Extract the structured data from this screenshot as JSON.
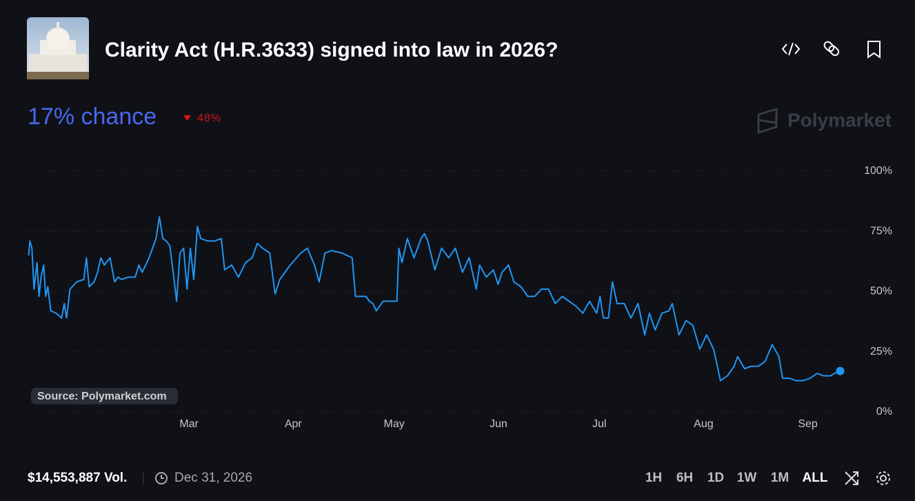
{
  "header": {
    "title": "Clarity Act (H.R.3633) signed into law in 2026?",
    "chance": "17% chance",
    "change": "48%",
    "brand": "Polymarket"
  },
  "source": "Source: Polymarket.com",
  "footer": {
    "volume": "$14,553,887 Vol.",
    "end_date": "Dec 31, 2026",
    "ranges": [
      "1H",
      "6H",
      "1D",
      "1W",
      "1M",
      "ALL"
    ]
  },
  "chart_data": {
    "type": "line",
    "color": "#2196f3",
    "grid": true,
    "xlim": [
      12,
      257
    ],
    "ylim": [
      0,
      100
    ],
    "xticks": [
      {
        "value": 60,
        "label": "Mar"
      },
      {
        "value": 91,
        "label": "Apr"
      },
      {
        "value": 121,
        "label": "May"
      },
      {
        "value": 152,
        "label": "Jun"
      },
      {
        "value": 182,
        "label": "Jul"
      },
      {
        "value": 213,
        "label": "Aug"
      },
      {
        "value": 244,
        "label": "Sep"
      }
    ],
    "yticks": [
      {
        "value": 0,
        "label": "0%"
      },
      {
        "value": 25,
        "label": "25%"
      },
      {
        "value": 50,
        "label": "50%"
      },
      {
        "value": 75,
        "label": "75%"
      },
      {
        "value": 100,
        "label": "100%"
      }
    ],
    "x": [
      12.3,
      12.7,
      13.3,
      13.9,
      14.8,
      15.4,
      16.0,
      16.8,
      17.4,
      18.0,
      18.9,
      20.5,
      22.1,
      22.9,
      23.6,
      24.6,
      26.6,
      28.7,
      29.5,
      30.3,
      31.8,
      32.8,
      33.8,
      34.8,
      36.5,
      37.9,
      38.9,
      39.9,
      42.0,
      44.0,
      45.1,
      46.1,
      48.1,
      50.2,
      51.2,
      52.2,
      53.2,
      54.3,
      55.3,
      56.3,
      57.3,
      58.4,
      59.4,
      60.4,
      61.4,
      62.5,
      63.5,
      65.5,
      67.6,
      69.6,
      70.6,
      72.7,
      74.7,
      76.8,
      78.8,
      80.3,
      81.9,
      84.0,
      85.6,
      87.0,
      90.1,
      93.2,
      95.2,
      97.3,
      98.7,
      100.4,
      102.4,
      105.5,
      108.5,
      109.5,
      112.6,
      113.6,
      114.7,
      115.7,
      117.7,
      121.8,
      122.4,
      123.3,
      124.9,
      126.9,
      129.0,
      130.0,
      131.0,
      133.1,
      135.1,
      137.2,
      139.2,
      141.3,
      143.3,
      145.4,
      146.4,
      148.4,
      150.5,
      151.9,
      153.1,
      155.0,
      156.6,
      158.7,
      160.7,
      162.8,
      164.8,
      166.9,
      168.9,
      171.0,
      173.0,
      175.0,
      177.1,
      179.1,
      181.2,
      182.2,
      183.2,
      184.7,
      185.9,
      187.3,
      189.4,
      191.4,
      193.5,
      195.5,
      196.9,
      198.6,
      200.6,
      202.7,
      203.7,
      205.7,
      207.8,
      209.8,
      211.9,
      213.9,
      216.0,
      218.0,
      220.1,
      222.1,
      223.1,
      225.2,
      227.2,
      229.3,
      231.3,
      233.4,
      235.4,
      236.5,
      238.5,
      240.5,
      242.6,
      244.7,
      246.7,
      248.7,
      250.8,
      251.8,
      253.6
    ],
    "values": [
      65,
      71,
      68,
      51,
      62,
      48,
      56,
      61,
      48,
      52,
      42,
      41,
      39,
      45,
      39,
      51,
      54,
      55,
      64,
      52,
      54,
      58,
      64,
      61,
      64,
      54,
      56,
      55,
      56,
      56,
      61,
      58,
      64,
      72,
      81,
      72,
      71,
      69,
      58,
      46,
      66,
      68,
      51,
      68,
      55,
      77,
      72,
      71,
      71,
      72,
      59,
      61,
      56,
      62,
      64,
      70,
      68,
      66,
      49,
      55,
      61,
      66,
      68,
      61,
      54,
      66,
      67,
      66,
      64,
      48,
      48,
      46,
      45,
      42,
      46,
      46,
      68,
      62,
      72,
      64,
      72,
      74,
      71,
      59,
      68,
      64,
      68,
      58,
      64,
      51,
      61,
      56,
      59,
      53,
      58,
      61,
      54,
      52,
      48,
      48,
      51,
      51,
      45,
      48,
      46,
      44,
      41,
      46,
      41,
      48,
      39,
      39,
      54,
      45,
      45,
      39,
      45,
      32,
      41,
      34,
      41,
      42,
      45,
      32,
      38,
      36,
      26,
      32,
      26,
      13,
      15,
      19,
      23,
      18,
      19,
      19,
      21,
      28,
      23,
      14,
      14,
      13,
      13,
      14,
      16,
      15,
      15,
      16,
      17
    ]
  }
}
